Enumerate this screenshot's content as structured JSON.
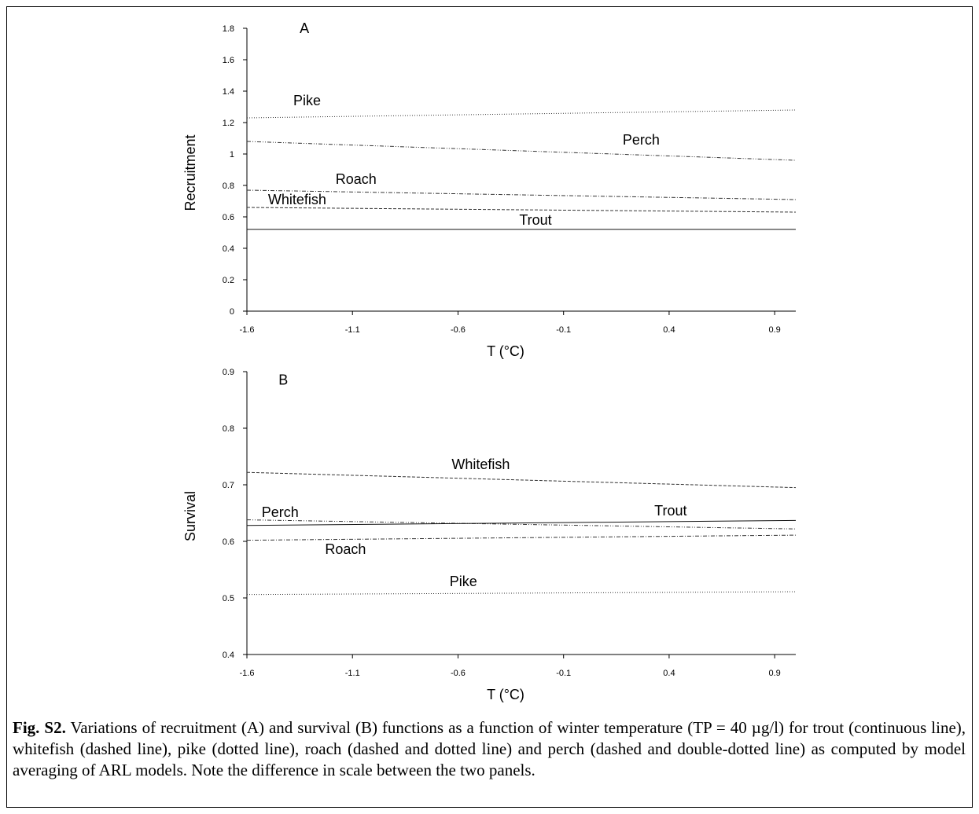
{
  "chart_data": [
    {
      "type": "line",
      "panel_label": "A",
      "xlabel": "T (°C)",
      "ylabel": "Recruitment",
      "xlim": [
        -1.6,
        1.0
      ],
      "ylim": [
        0,
        1.8
      ],
      "xticks": [
        "-1.6",
        "-1.1",
        "-0.6",
        "-0.1",
        "0.4",
        "0.9"
      ],
      "xtick_values": [
        -1.6,
        -1.1,
        -0.6,
        -0.1,
        0.4,
        0.9
      ],
      "yticks": [
        "0",
        "0.2",
        "0.4",
        "0.6",
        "0.8",
        "1",
        "1.2",
        "1.4",
        "1.6",
        "1.8"
      ],
      "ytick_values": [
        0,
        0.2,
        0.4,
        0.6,
        0.8,
        1.0,
        1.2,
        1.4,
        1.6,
        1.8
      ],
      "series": [
        {
          "name": "Pike",
          "style": "dotted",
          "x": [
            -1.6,
            1.0
          ],
          "y": [
            1.23,
            1.28
          ]
        },
        {
          "name": "Perch",
          "style": "dash-dot-dot",
          "x": [
            -1.6,
            1.0
          ],
          "y": [
            1.08,
            0.96
          ]
        },
        {
          "name": "Roach",
          "style": "dash-dot",
          "x": [
            -1.6,
            1.0
          ],
          "y": [
            0.77,
            0.71
          ]
        },
        {
          "name": "Whitefish",
          "style": "dashed",
          "x": [
            -1.6,
            1.0
          ],
          "y": [
            0.66,
            0.63
          ]
        },
        {
          "name": "Trout",
          "style": "solid",
          "x": [
            -1.6,
            1.0
          ],
          "y": [
            0.52,
            0.52
          ]
        }
      ],
      "labels": [
        {
          "text": "Pike",
          "x": -1.38,
          "y": 1.31
        },
        {
          "text": "Perch",
          "x": 0.18,
          "y": 1.06
        },
        {
          "text": "Roach",
          "x": -1.18,
          "y": 0.81
        },
        {
          "text": "Whitefish",
          "x": -1.5,
          "y": 0.68
        },
        {
          "text": "Trout",
          "x": -0.31,
          "y": 0.55
        }
      ],
      "panel_label_pos": {
        "x": -1.35,
        "y": 1.77
      }
    },
    {
      "type": "line",
      "panel_label": "B",
      "xlabel": "T (°C)",
      "ylabel": "Survival",
      "xlim": [
        -1.6,
        1.0
      ],
      "ylim": [
        0.4,
        0.9
      ],
      "xticks": [
        "-1.6",
        "-1.1",
        "-0.6",
        "-0.1",
        "0.4",
        "0.9"
      ],
      "xtick_values": [
        -1.6,
        -1.1,
        -0.6,
        -0.1,
        0.4,
        0.9
      ],
      "yticks": [
        "0.4",
        "0.5",
        "0.6",
        "0.7",
        "0.8",
        "0.9"
      ],
      "ytick_values": [
        0.4,
        0.5,
        0.6,
        0.7,
        0.8,
        0.9
      ],
      "series": [
        {
          "name": "Whitefish",
          "style": "dashed",
          "x": [
            -1.6,
            1.0
          ],
          "y": [
            0.722,
            0.695
          ]
        },
        {
          "name": "Perch",
          "style": "dash-dot-dot",
          "x": [
            -1.6,
            1.0
          ],
          "y": [
            0.638,
            0.622
          ]
        },
        {
          "name": "Trout",
          "style": "solid",
          "x": [
            -1.6,
            1.0
          ],
          "y": [
            0.628,
            0.637
          ]
        },
        {
          "name": "Roach",
          "style": "dash-dot",
          "x": [
            -1.6,
            1.0
          ],
          "y": [
            0.602,
            0.611
          ]
        },
        {
          "name": "Pike",
          "style": "dotted",
          "x": [
            -1.6,
            1.0
          ],
          "y": [
            0.506,
            0.511
          ]
        }
      ],
      "labels": [
        {
          "text": "Whitefish",
          "x": -0.63,
          "y": 0.728
        },
        {
          "text": "Perch",
          "x": -1.53,
          "y": 0.643
        },
        {
          "text": "Trout",
          "x": 0.33,
          "y": 0.646
        },
        {
          "text": "Roach",
          "x": -1.23,
          "y": 0.578
        },
        {
          "text": "Pike",
          "x": -0.64,
          "y": 0.521
        }
      ],
      "panel_label_pos": {
        "x": -1.45,
        "y": 0.877
      }
    }
  ],
  "caption": {
    "bold": "Fig. S2.",
    "text": " Variations of recruitment (A) and survival (B) functions as a function of winter temperature (TP = 40 µg/l) for trout (continuous line), whitefish (dashed line), pike (dotted line), roach (dashed and dotted line) and perch (dashed and double-dotted line) as computed by model averaging of ARL models. Note the difference in scale between the two panels."
  }
}
